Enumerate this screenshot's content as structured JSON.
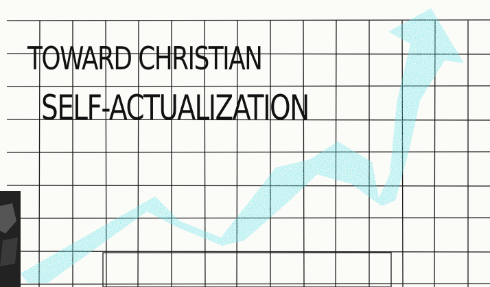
{
  "title": {
    "line1": "TOWARD CHRISTIAN",
    "line2": "SELF-ACTUALIZATION"
  },
  "colors": {
    "background": "#fbfbf8",
    "grid": "#1a1a1a",
    "arrow": "#6fe6ec",
    "text": "#111111",
    "corner": "#222222"
  }
}
